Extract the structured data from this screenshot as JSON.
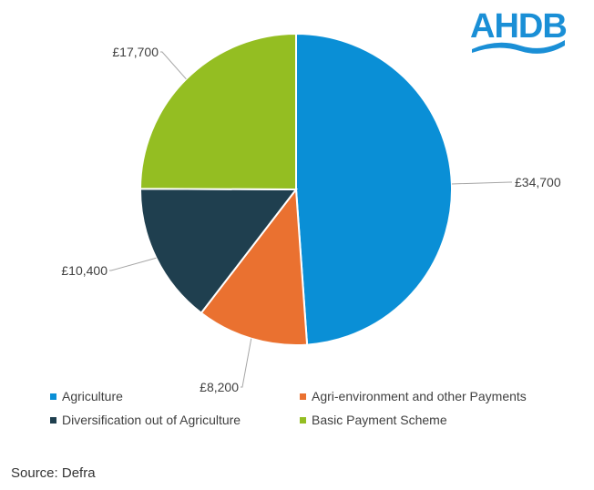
{
  "chart_data": {
    "type": "pie",
    "categories": [
      "Agriculture",
      "Agri-environment and other Payments",
      "Diversification out of Agriculture",
      "Basic Payment Scheme"
    ],
    "values": [
      34700,
      8200,
      10400,
      17700
    ],
    "data_labels": [
      "£34,700",
      "£8,200",
      "£10,400",
      "£17,700"
    ],
    "colors": [
      "#0a8fd6",
      "#ea7130",
      "#1f3f4f",
      "#94be22"
    ],
    "start_angle": "top, clockwise",
    "legend_position": "bottom"
  },
  "source": "Source: Defra",
  "logo": {
    "text": "AHDB",
    "color": "#1a8fd6"
  }
}
